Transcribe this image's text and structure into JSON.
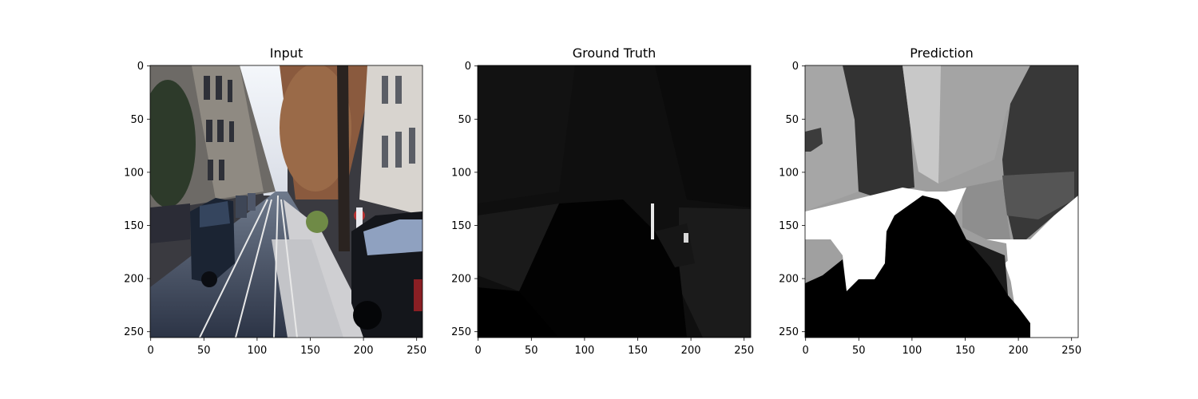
{
  "figure": {
    "panels": [
      {
        "title": "Input",
        "content": "street-scene-photo",
        "xticks": [
          "0",
          "50",
          "100",
          "150",
          "200",
          "250"
        ],
        "yticks": [
          "0",
          "50",
          "100",
          "150",
          "200",
          "250"
        ]
      },
      {
        "title": "Ground Truth",
        "content": "segmentation-mask-dark",
        "xticks": [
          "0",
          "50",
          "100",
          "150",
          "200",
          "250"
        ],
        "yticks": [
          "0",
          "50",
          "100",
          "150",
          "200",
          "250"
        ]
      },
      {
        "title": "Prediction",
        "content": "segmentation-mask-gray",
        "xticks": [
          "0",
          "50",
          "100",
          "150",
          "200",
          "250"
        ],
        "yticks": [
          "0",
          "50",
          "100",
          "150",
          "200",
          "250"
        ]
      }
    ],
    "axis_range": [
      0,
      256
    ]
  },
  "colors": {
    "text": "#000000",
    "background": "#ffffff"
  }
}
